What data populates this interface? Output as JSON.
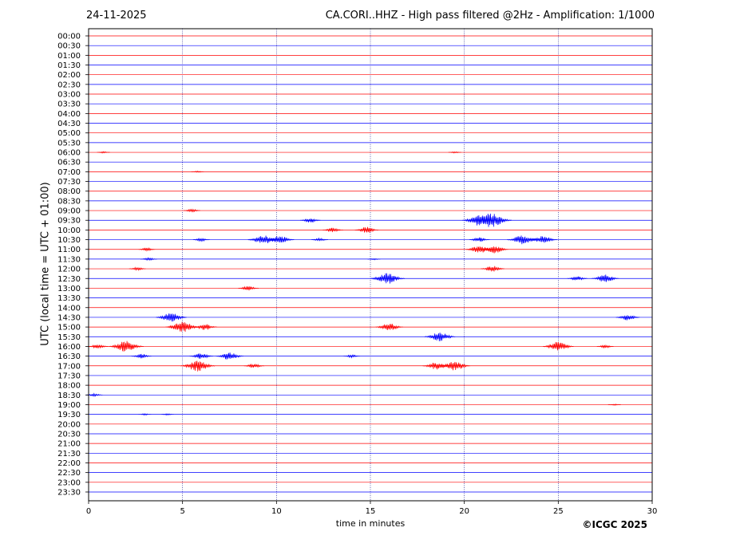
{
  "header": {
    "date": "24-11-2025",
    "title": "CA.CORI..HHZ - High pass filtered @2Hz - Amplification: 1/1000"
  },
  "footer": {
    "copyright": "©ICGC 2025"
  },
  "colors": {
    "red_trace": "#ff0000",
    "blue_trace": "#0000ff",
    "frame": "#000000"
  },
  "chart_data": {
    "type": "line",
    "title": "CA.CORI..HHZ - High pass filtered @2Hz - Amplification: 1/1000",
    "xlabel": "time in minutes",
    "ylabel": "UTC (local time = UTC + 01:00)",
    "xlim": [
      0,
      30
    ],
    "x_ticks": [
      0,
      5,
      10,
      15,
      20,
      25,
      30
    ],
    "vertical_grid": [
      5,
      10,
      15,
      20,
      25
    ],
    "rows": [
      "00:00",
      "00:30",
      "01:00",
      "01:30",
      "02:00",
      "02:30",
      "03:00",
      "03:30",
      "04:00",
      "04:30",
      "05:00",
      "05:30",
      "06:00",
      "06:30",
      "07:00",
      "07:30",
      "08:00",
      "08:30",
      "09:00",
      "09:30",
      "10:00",
      "10:30",
      "11:00",
      "11:30",
      "12:00",
      "12:30",
      "13:00",
      "13:30",
      "14:00",
      "14:30",
      "15:00",
      "15:30",
      "16:00",
      "16:30",
      "17:00",
      "17:30",
      "18:00",
      "18:30",
      "19:00",
      "19:30",
      "20:00",
      "20:30",
      "21:00",
      "21:30",
      "22:00",
      "22:30",
      "23:00",
      "23:30"
    ],
    "row_colors": [
      "red",
      "blue"
    ],
    "bursts": [
      {
        "row": "06:00",
        "minute": 0.8,
        "amplitude": 1
      },
      {
        "row": "06:00",
        "minute": 19.5,
        "amplitude": 1
      },
      {
        "row": "07:00",
        "minute": 5.8,
        "amplitude": 1
      },
      {
        "row": "09:00",
        "minute": 5.5,
        "amplitude": 2
      },
      {
        "row": "09:30",
        "minute": 11.8,
        "amplitude": 3
      },
      {
        "row": "09:30",
        "minute": 20.8,
        "amplitude": 7
      },
      {
        "row": "09:30",
        "minute": 21.4,
        "amplitude": 9
      },
      {
        "row": "10:00",
        "minute": 13.0,
        "amplitude": 3
      },
      {
        "row": "10:00",
        "minute": 14.8,
        "amplitude": 4
      },
      {
        "row": "10:30",
        "minute": 6.0,
        "amplitude": 2
      },
      {
        "row": "10:30",
        "minute": 9.3,
        "amplitude": 6
      },
      {
        "row": "10:30",
        "minute": 10.2,
        "amplitude": 5
      },
      {
        "row": "10:30",
        "minute": 12.3,
        "amplitude": 2
      },
      {
        "row": "10:30",
        "minute": 20.8,
        "amplitude": 3
      },
      {
        "row": "10:30",
        "minute": 23.1,
        "amplitude": 6
      },
      {
        "row": "10:30",
        "minute": 24.2,
        "amplitude": 5
      },
      {
        "row": "11:00",
        "minute": 3.1,
        "amplitude": 2
      },
      {
        "row": "11:00",
        "minute": 20.8,
        "amplitude": 5
      },
      {
        "row": "11:00",
        "minute": 21.6,
        "amplitude": 5
      },
      {
        "row": "11:30",
        "minute": 3.2,
        "amplitude": 2
      },
      {
        "row": "11:30",
        "minute": 15.2,
        "amplitude": 1
      },
      {
        "row": "12:00",
        "minute": 2.6,
        "amplitude": 2
      },
      {
        "row": "12:00",
        "minute": 21.5,
        "amplitude": 4
      },
      {
        "row": "12:30",
        "minute": 15.9,
        "amplitude": 7
      },
      {
        "row": "12:30",
        "minute": 26.0,
        "amplitude": 3
      },
      {
        "row": "12:30",
        "minute": 27.5,
        "amplitude": 5
      },
      {
        "row": "13:00",
        "minute": 8.5,
        "amplitude": 3
      },
      {
        "row": "14:30",
        "minute": 4.4,
        "amplitude": 6
      },
      {
        "row": "14:30",
        "minute": 28.7,
        "amplitude": 4
      },
      {
        "row": "15:00",
        "minute": 5.0,
        "amplitude": 7
      },
      {
        "row": "15:00",
        "minute": 6.2,
        "amplitude": 4
      },
      {
        "row": "15:00",
        "minute": 16.0,
        "amplitude": 5
      },
      {
        "row": "15:30",
        "minute": 18.7,
        "amplitude": 6
      },
      {
        "row": "16:00",
        "minute": 0.5,
        "amplitude": 3
      },
      {
        "row": "16:00",
        "minute": 2.0,
        "amplitude": 7
      },
      {
        "row": "16:00",
        "minute": 25.0,
        "amplitude": 6
      },
      {
        "row": "16:00",
        "minute": 27.5,
        "amplitude": 2
      },
      {
        "row": "16:30",
        "minute": 2.8,
        "amplitude": 3
      },
      {
        "row": "16:30",
        "minute": 6.0,
        "amplitude": 4
      },
      {
        "row": "16:30",
        "minute": 7.5,
        "amplitude": 5
      },
      {
        "row": "16:30",
        "minute": 14.0,
        "amplitude": 2
      },
      {
        "row": "17:00",
        "minute": 5.8,
        "amplitude": 7
      },
      {
        "row": "17:00",
        "minute": 8.8,
        "amplitude": 3
      },
      {
        "row": "17:00",
        "minute": 18.5,
        "amplitude": 5
      },
      {
        "row": "17:00",
        "minute": 19.5,
        "amplitude": 6
      },
      {
        "row": "18:30",
        "minute": 0.3,
        "amplitude": 2
      },
      {
        "row": "19:00",
        "minute": 28.0,
        "amplitude": 1
      },
      {
        "row": "19:30",
        "minute": 3.0,
        "amplitude": 1
      },
      {
        "row": "19:30",
        "minute": 4.2,
        "amplitude": 1
      }
    ]
  }
}
